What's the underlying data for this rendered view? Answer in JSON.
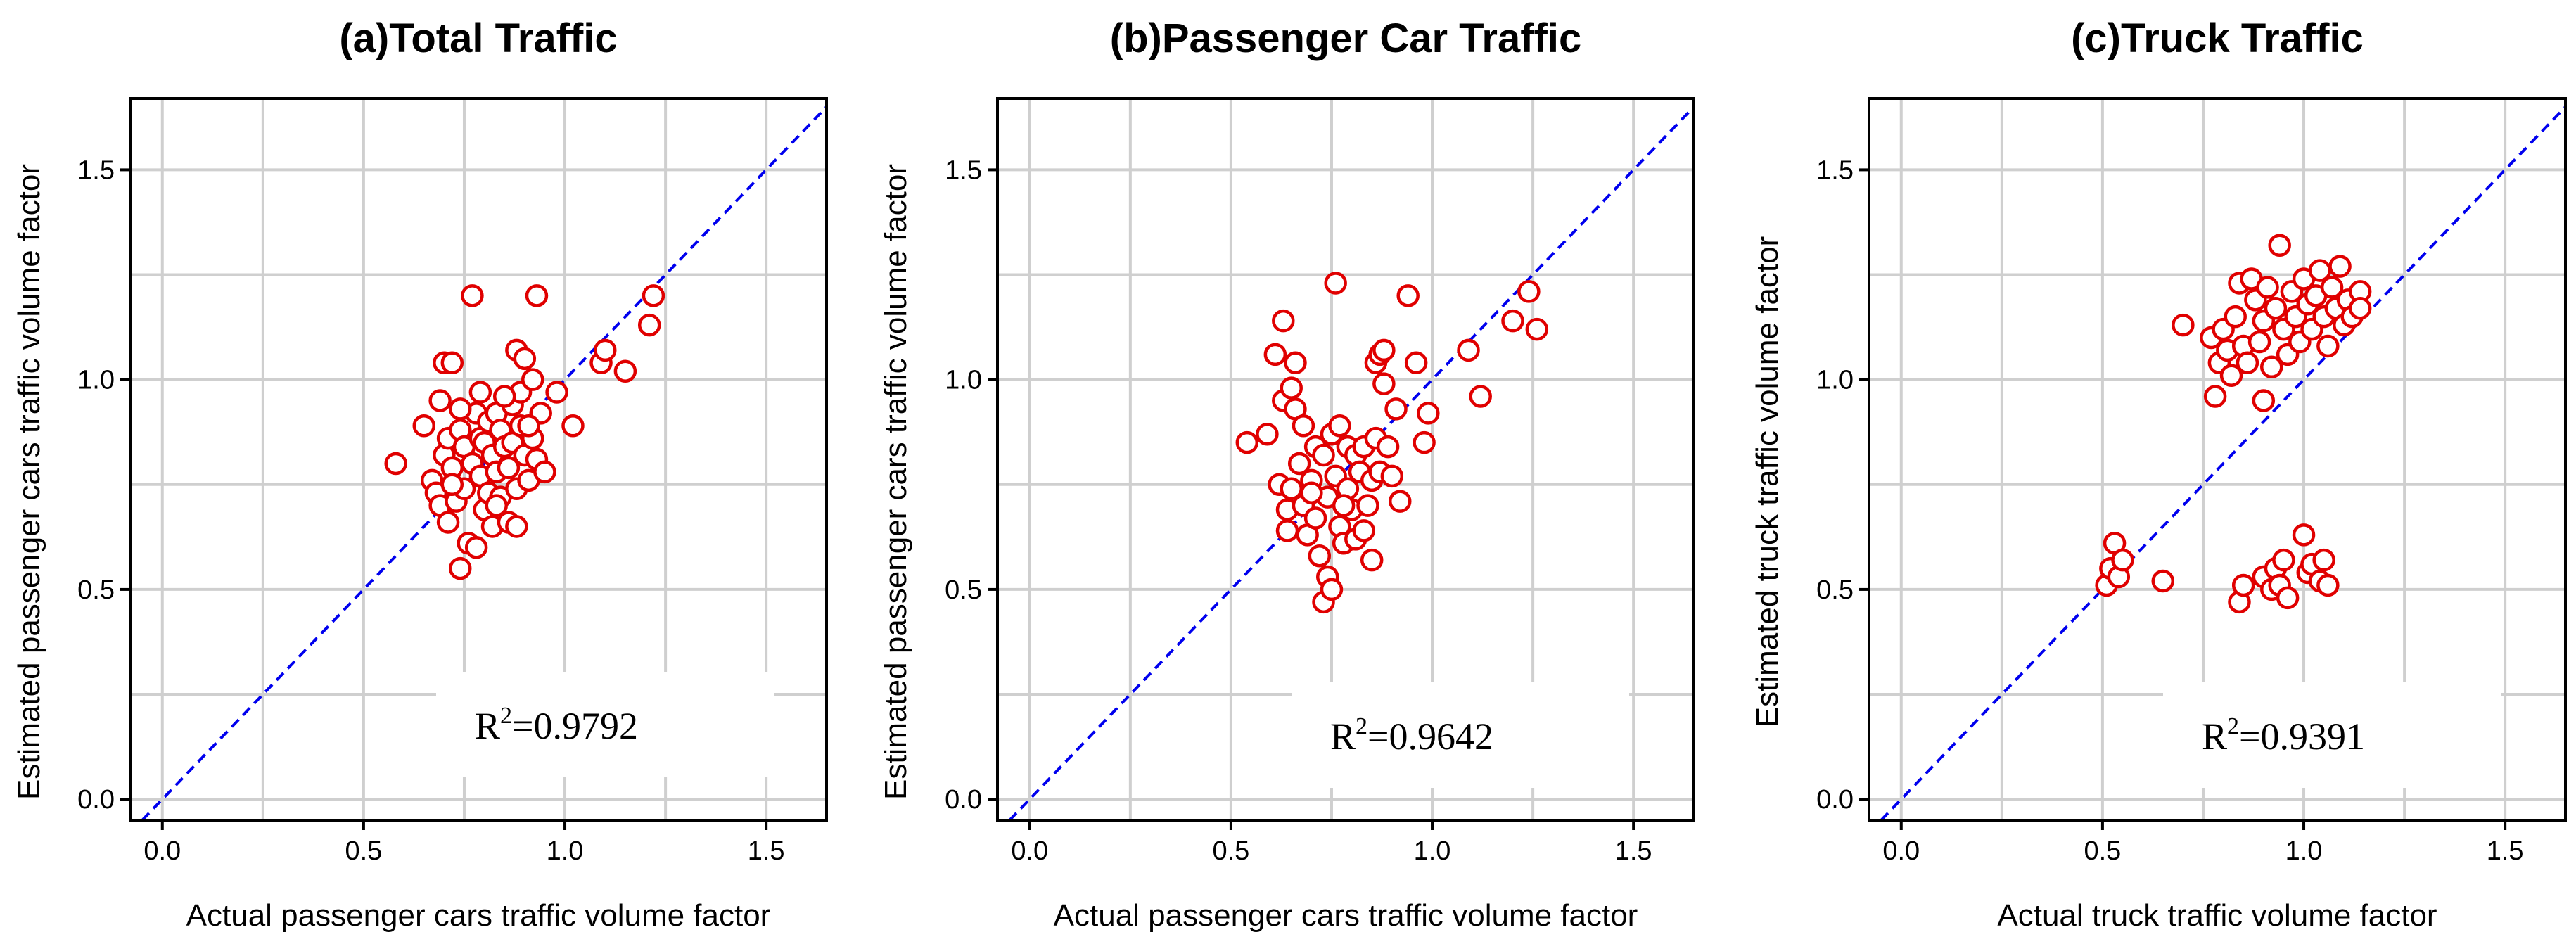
{
  "chart_data": [
    {
      "type": "scatter",
      "title": "(a)Total Traffic",
      "xlabel": "Actual passenger cars traffic volume factor",
      "ylabel": "Estimated passenger cars traffic volume factor",
      "xlim": [
        -0.08,
        1.65
      ],
      "ylim": [
        -0.05,
        1.67
      ],
      "xticks": [
        "0.0",
        "0.5",
        "1.0",
        "1.5"
      ],
      "yticks": [
        "0.0",
        "0.5",
        "1.0",
        "1.5"
      ],
      "r2_label": "R",
      "r2_sup": "2",
      "r2_value": "=0.9792",
      "reference_line": "y = x",
      "points": [
        [
          0.58,
          0.8
        ],
        [
          0.65,
          0.89
        ],
        [
          0.67,
          0.76
        ],
        [
          0.68,
          0.73
        ],
        [
          0.69,
          0.95
        ],
        [
          0.69,
          0.7
        ],
        [
          0.7,
          1.04
        ],
        [
          0.7,
          0.82
        ],
        [
          0.71,
          0.86
        ],
        [
          0.71,
          0.66
        ],
        [
          0.72,
          1.04
        ],
        [
          0.72,
          0.79
        ],
        [
          0.73,
          0.71
        ],
        [
          0.74,
          0.55
        ],
        [
          0.74,
          0.88
        ],
        [
          0.75,
          0.84
        ],
        [
          0.75,
          0.74
        ],
        [
          0.76,
          0.61
        ],
        [
          0.77,
          1.2
        ],
        [
          0.77,
          0.8
        ],
        [
          0.78,
          0.92
        ],
        [
          0.78,
          0.6
        ],
        [
          0.79,
          0.86
        ],
        [
          0.79,
          0.77
        ],
        [
          0.8,
          0.85
        ],
        [
          0.8,
          0.69
        ],
        [
          0.81,
          0.9
        ],
        [
          0.81,
          0.73
        ],
        [
          0.82,
          0.82
        ],
        [
          0.82,
          0.65
        ],
        [
          0.83,
          0.92
        ],
        [
          0.83,
          0.78
        ],
        [
          0.84,
          0.88
        ],
        [
          0.84,
          0.72
        ],
        [
          0.85,
          0.84
        ],
        [
          0.86,
          0.66
        ],
        [
          0.86,
          0.79
        ],
        [
          0.87,
          0.94
        ],
        [
          0.87,
          0.85
        ],
        [
          0.88,
          1.07
        ],
        [
          0.88,
          0.74
        ],
        [
          0.88,
          0.65
        ],
        [
          0.89,
          0.97
        ],
        [
          0.89,
          0.89
        ],
        [
          0.9,
          0.82
        ],
        [
          0.9,
          1.05
        ],
        [
          0.91,
          0.76
        ],
        [
          0.92,
          1.0
        ],
        [
          0.92,
          0.86
        ],
        [
          0.93,
          1.2
        ],
        [
          0.93,
          0.81
        ],
        [
          0.94,
          0.92
        ],
        [
          0.95,
          0.78
        ],
        [
          0.98,
          0.97
        ],
        [
          1.02,
          0.89
        ],
        [
          1.09,
          1.04
        ],
        [
          1.1,
          1.07
        ],
        [
          1.15,
          1.02
        ],
        [
          1.21,
          1.13
        ],
        [
          1.22,
          1.2
        ],
        [
          0.74,
          0.93
        ],
        [
          0.85,
          0.96
        ],
        [
          0.79,
          0.97
        ],
        [
          0.72,
          0.75
        ],
        [
          0.83,
          0.7
        ],
        [
          0.91,
          0.89
        ]
      ]
    },
    {
      "type": "scatter",
      "title": "(b)Passenger Car Traffic",
      "xlabel": "Actual passenger cars traffic volume factor",
      "ylabel": "Estimated passenger cars traffic volume factor",
      "xlim": [
        -0.08,
        1.65
      ],
      "ylim": [
        -0.05,
        1.67
      ],
      "xticks": [
        "0.0",
        "0.5",
        "1.0",
        "1.5"
      ],
      "yticks": [
        "0.0",
        "0.5",
        "1.0",
        "1.5"
      ],
      "r2_label": "R",
      "r2_sup": "2",
      "r2_value": "=0.9642",
      "reference_line": "y = x",
      "points": [
        [
          0.54,
          0.85
        ],
        [
          0.59,
          0.87
        ],
        [
          0.61,
          1.06
        ],
        [
          0.62,
          0.75
        ],
        [
          0.63,
          0.95
        ],
        [
          0.63,
          1.14
        ],
        [
          0.64,
          0.69
        ],
        [
          0.64,
          0.64
        ],
        [
          0.65,
          0.74
        ],
        [
          0.66,
          1.04
        ],
        [
          0.66,
          0.93
        ],
        [
          0.67,
          0.8
        ],
        [
          0.68,
          0.7
        ],
        [
          0.68,
          0.89
        ],
        [
          0.69,
          0.63
        ],
        [
          0.7,
          0.76
        ],
        [
          0.71,
          0.84
        ],
        [
          0.71,
          0.67
        ],
        [
          0.72,
          0.58
        ],
        [
          0.73,
          0.47
        ],
        [
          0.73,
          0.82
        ],
        [
          0.74,
          0.72
        ],
        [
          0.74,
          0.53
        ],
        [
          0.75,
          0.5
        ],
        [
          0.75,
          0.87
        ],
        [
          0.76,
          1.23
        ],
        [
          0.76,
          0.77
        ],
        [
          0.77,
          0.65
        ],
        [
          0.77,
          0.89
        ],
        [
          0.78,
          0.61
        ],
        [
          0.79,
          0.84
        ],
        [
          0.79,
          0.74
        ],
        [
          0.8,
          0.69
        ],
        [
          0.81,
          0.82
        ],
        [
          0.81,
          0.62
        ],
        [
          0.82,
          0.78
        ],
        [
          0.83,
          0.84
        ],
        [
          0.84,
          0.7
        ],
        [
          0.85,
          0.57
        ],
        [
          0.85,
          0.76
        ],
        [
          0.86,
          1.04
        ],
        [
          0.86,
          0.86
        ],
        [
          0.87,
          1.06
        ],
        [
          0.87,
          0.78
        ],
        [
          0.88,
          1.07
        ],
        [
          0.88,
          0.99
        ],
        [
          0.89,
          0.84
        ],
        [
          0.9,
          0.77
        ],
        [
          0.91,
          0.93
        ],
        [
          0.92,
          0.71
        ],
        [
          0.94,
          1.2
        ],
        [
          0.96,
          1.04
        ],
        [
          0.98,
          0.85
        ],
        [
          0.99,
          0.92
        ],
        [
          1.09,
          1.07
        ],
        [
          1.12,
          0.96
        ],
        [
          1.2,
          1.14
        ],
        [
          1.24,
          1.21
        ],
        [
          1.26,
          1.12
        ],
        [
          0.7,
          0.73
        ],
        [
          0.78,
          0.7
        ],
        [
          0.83,
          0.64
        ],
        [
          0.65,
          0.98
        ]
      ]
    },
    {
      "type": "scatter",
      "title": "(c)Truck Traffic",
      "xlabel": "Actual truck traffic volume factor",
      "ylabel": "Estimated truck traffic volume factor",
      "xlim": [
        -0.08,
        1.65
      ],
      "ylim": [
        -0.05,
        1.67
      ],
      "xticks": [
        "0.0",
        "0.5",
        "1.0",
        "1.5"
      ],
      "yticks": [
        "0.0",
        "0.5",
        "1.0",
        "1.5"
      ],
      "r2_label": "R",
      "r2_sup": "2",
      "r2_value": "=0.9391",
      "reference_line": "y = x",
      "points": [
        [
          0.51,
          0.51
        ],
        [
          0.52,
          0.55
        ],
        [
          0.53,
          0.61
        ],
        [
          0.54,
          0.53
        ],
        [
          0.55,
          0.57
        ],
        [
          0.65,
          0.52
        ],
        [
          0.84,
          0.47
        ],
        [
          0.85,
          0.51
        ],
        [
          0.9,
          0.53
        ],
        [
          0.92,
          0.5
        ],
        [
          0.93,
          0.55
        ],
        [
          0.94,
          0.51
        ],
        [
          0.95,
          0.57
        ],
        [
          0.96,
          0.48
        ],
        [
          1.0,
          0.63
        ],
        [
          1.01,
          0.54
        ],
        [
          1.02,
          0.56
        ],
        [
          1.04,
          0.52
        ],
        [
          1.05,
          0.57
        ],
        [
          1.06,
          0.51
        ],
        [
          0.7,
          1.13
        ],
        [
          0.77,
          1.1
        ],
        [
          0.78,
          0.96
        ],
        [
          0.79,
          1.04
        ],
        [
          0.8,
          1.12
        ],
        [
          0.81,
          1.07
        ],
        [
          0.82,
          1.01
        ],
        [
          0.83,
          1.15
        ],
        [
          0.84,
          1.23
        ],
        [
          0.85,
          1.08
        ],
        [
          0.86,
          1.04
        ],
        [
          0.87,
          1.24
        ],
        [
          0.88,
          1.19
        ],
        [
          0.89,
          1.09
        ],
        [
          0.9,
          0.95
        ],
        [
          0.9,
          1.14
        ],
        [
          0.91,
          1.22
        ],
        [
          0.92,
          1.03
        ],
        [
          0.93,
          1.17
        ],
        [
          0.94,
          1.32
        ],
        [
          0.95,
          1.12
        ],
        [
          0.96,
          1.06
        ],
        [
          0.97,
          1.21
        ],
        [
          0.98,
          1.15
        ],
        [
          0.99,
          1.09
        ],
        [
          1.0,
          1.24
        ],
        [
          1.01,
          1.18
        ],
        [
          1.02,
          1.12
        ],
        [
          1.03,
          1.2
        ],
        [
          1.04,
          1.26
        ],
        [
          1.05,
          1.15
        ],
        [
          1.06,
          1.08
        ],
        [
          1.07,
          1.22
        ],
        [
          1.08,
          1.17
        ],
        [
          1.09,
          1.27
        ],
        [
          1.1,
          1.13
        ],
        [
          1.11,
          1.19
        ],
        [
          1.12,
          1.15
        ],
        [
          1.14,
          1.21
        ],
        [
          1.14,
          1.17
        ]
      ]
    }
  ]
}
